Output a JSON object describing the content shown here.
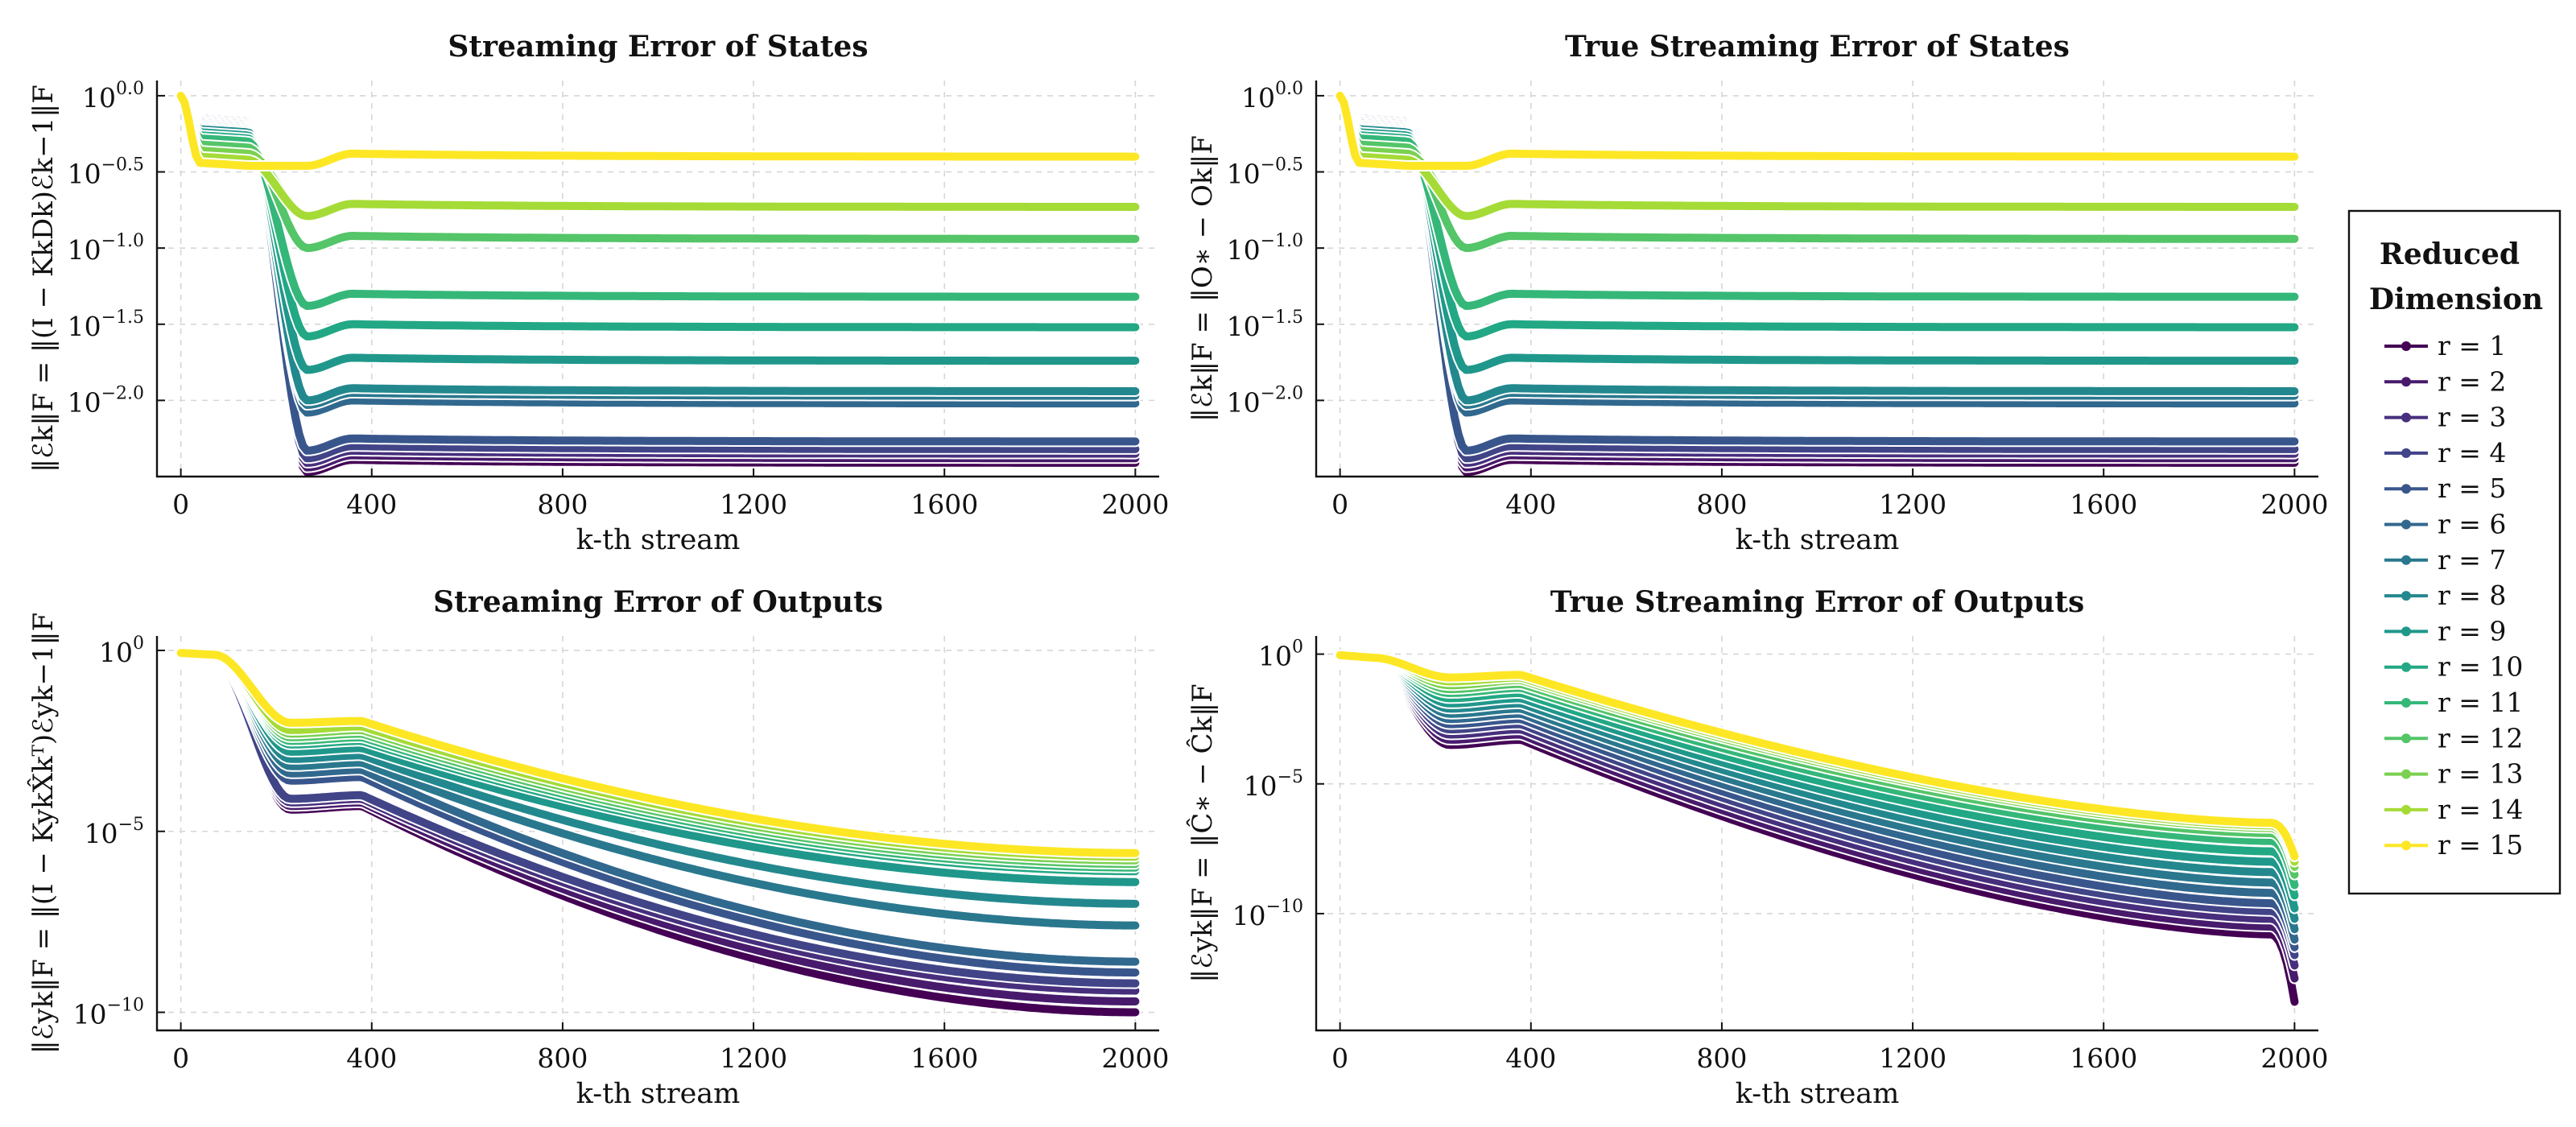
{
  "legend": {
    "title_line1": "Reduced",
    "title_line2": "Dimension",
    "placement": "right"
  },
  "chart_data": [
    {
      "type": "line",
      "title": "Streaming Error of States",
      "xlabel": "k-th stream",
      "ylabel": "‖ℰk‖F = ‖(I − KkDk)ℰk−1‖F",
      "yscale": "log",
      "xlim": [
        -50,
        2050
      ],
      "ylim": [
        -2.5,
        0.1
      ],
      "xticks": [
        "0",
        "400",
        "800",
        "1200",
        "1600",
        "2000"
      ],
      "xtick_values": [
        0,
        400,
        800,
        1200,
        1600,
        2000
      ],
      "yticks": [
        {
          "base": "10",
          "exp": "0.0"
        },
        {
          "base": "10",
          "exp": "−0.5"
        },
        {
          "base": "10",
          "exp": "−1.0"
        },
        {
          "base": "10",
          "exp": "−1.5"
        },
        {
          "base": "10",
          "exp": "−2.0"
        }
      ],
      "ytick_values": [
        0.0,
        -0.5,
        -1.0,
        -1.5,
        -2.0
      ],
      "grid": true,
      "series": [
        {
          "name": "r = 1",
          "start": 0.0,
          "plateau": -0.15,
          "final": -2.39
        },
        {
          "name": "r = 2",
          "start": 0.0,
          "plateau": -0.16,
          "final": -2.36
        },
        {
          "name": "r = 3",
          "start": 0.0,
          "plateau": -0.17,
          "final": -2.33
        },
        {
          "name": "r = 4",
          "start": 0.0,
          "plateau": -0.18,
          "final": -2.3
        },
        {
          "name": "r = 5",
          "start": 0.0,
          "plateau": -0.19,
          "final": -2.25
        },
        {
          "name": "r = 6",
          "start": 0.0,
          "plateau": -0.2,
          "final": -2.0
        },
        {
          "name": "r = 7",
          "start": 0.0,
          "plateau": -0.21,
          "final": -1.95
        },
        {
          "name": "r = 8",
          "start": 0.0,
          "plateau": -0.22,
          "final": -1.92
        },
        {
          "name": "r = 9",
          "start": 0.0,
          "plateau": -0.24,
          "final": -1.72
        },
        {
          "name": "r = 10",
          "start": 0.0,
          "plateau": -0.26,
          "final": -1.5
        },
        {
          "name": "r = 11",
          "start": 0.0,
          "plateau": -0.28,
          "final": -1.3
        },
        {
          "name": "r = 12",
          "start": 0.0,
          "plateau": -0.32,
          "final": -0.92
        },
        {
          "name": "r = 13",
          "start": 0.0,
          "plateau": -0.36,
          "final": -0.71
        },
        {
          "name": "r = 14",
          "start": 0.0,
          "plateau": -0.4,
          "final": -0.71
        },
        {
          "name": "r = 15",
          "start": 0.0,
          "plateau": -0.44,
          "final": -0.38
        }
      ]
    },
    {
      "type": "line",
      "title": "True Streaming Error of States",
      "xlabel": "k-th stream",
      "ylabel": "‖ℰk‖F = ‖O∗ − Ok‖F",
      "yscale": "log",
      "xlim": [
        -50,
        2050
      ],
      "ylim": [
        -2.5,
        0.1
      ],
      "xticks": [
        "0",
        "400",
        "800",
        "1200",
        "1600",
        "2000"
      ],
      "xtick_values": [
        0,
        400,
        800,
        1200,
        1600,
        2000
      ],
      "yticks": [
        {
          "base": "10",
          "exp": "0.0"
        },
        {
          "base": "10",
          "exp": "−0.5"
        },
        {
          "base": "10",
          "exp": "−1.0"
        },
        {
          "base": "10",
          "exp": "−1.5"
        },
        {
          "base": "10",
          "exp": "−2.0"
        }
      ],
      "ytick_values": [
        0.0,
        -0.5,
        -1.0,
        -1.5,
        -2.0
      ],
      "grid": true,
      "series": [
        {
          "name": "r = 1",
          "start": 0.0,
          "plateau": -0.15,
          "final": -2.39
        },
        {
          "name": "r = 2",
          "start": 0.0,
          "plateau": -0.16,
          "final": -2.36
        },
        {
          "name": "r = 3",
          "start": 0.0,
          "plateau": -0.17,
          "final": -2.33
        },
        {
          "name": "r = 4",
          "start": 0.0,
          "plateau": -0.18,
          "final": -2.3
        },
        {
          "name": "r = 5",
          "start": 0.0,
          "plateau": -0.19,
          "final": -2.25
        },
        {
          "name": "r = 6",
          "start": 0.0,
          "plateau": -0.2,
          "final": -2.0
        },
        {
          "name": "r = 7",
          "start": 0.0,
          "plateau": -0.21,
          "final": -1.95
        },
        {
          "name": "r = 8",
          "start": 0.0,
          "plateau": -0.22,
          "final": -1.92
        },
        {
          "name": "r = 9",
          "start": 0.0,
          "plateau": -0.24,
          "final": -1.72
        },
        {
          "name": "r = 10",
          "start": 0.0,
          "plateau": -0.26,
          "final": -1.5
        },
        {
          "name": "r = 11",
          "start": 0.0,
          "plateau": -0.28,
          "final": -1.3
        },
        {
          "name": "r = 12",
          "start": 0.0,
          "plateau": -0.32,
          "final": -0.92
        },
        {
          "name": "r = 13",
          "start": 0.0,
          "plateau": -0.36,
          "final": -0.71
        },
        {
          "name": "r = 14",
          "start": 0.0,
          "plateau": -0.4,
          "final": -0.71
        },
        {
          "name": "r = 15",
          "start": 0.0,
          "plateau": -0.44,
          "final": -0.38
        }
      ]
    },
    {
      "type": "line",
      "title": "Streaming Error of Outputs",
      "xlabel": "k-th stream",
      "ylabel": "‖ℰyk‖F = ‖(I − KykX̂kᵀ)ℰyk−1‖F",
      "yscale": "log",
      "xlim": [
        -50,
        2050
      ],
      "ylim": [
        -10.5,
        0.4
      ],
      "xticks": [
        "0",
        "400",
        "800",
        "1200",
        "1600",
        "2000"
      ],
      "xtick_values": [
        0,
        400,
        800,
        1200,
        1600,
        2000
      ],
      "yticks": [
        {
          "base": "10",
          "exp": "0"
        },
        {
          "base": "10",
          "exp": "−5"
        },
        {
          "base": "10",
          "exp": "−10"
        }
      ],
      "ytick_values": [
        0,
        -5,
        -10
      ],
      "grid": true,
      "series": [
        {
          "name": "r = 1",
          "start": -0.25,
          "dip": -4.4,
          "hump": -4.3,
          "final": -10.0
        },
        {
          "name": "r = 2",
          "start": -0.23,
          "dip": -4.3,
          "hump": -4.2,
          "final": -9.7
        },
        {
          "name": "r = 3",
          "start": -0.22,
          "dip": -4.2,
          "hump": -4.1,
          "final": -9.4
        },
        {
          "name": "r = 4",
          "start": -0.2,
          "dip": -4.1,
          "hump": -4.0,
          "final": -9.2
        },
        {
          "name": "r = 5",
          "start": -0.18,
          "dip": -3.6,
          "hump": -3.5,
          "final": -8.9
        },
        {
          "name": "r = 6",
          "start": -0.16,
          "dip": -3.4,
          "hump": -3.3,
          "final": -8.6
        },
        {
          "name": "r = 7",
          "start": -0.15,
          "dip": -3.2,
          "hump": -3.1,
          "final": -7.6
        },
        {
          "name": "r = 8",
          "start": -0.14,
          "dip": -3.0,
          "hump": -2.9,
          "final": -7.0
        },
        {
          "name": "r = 9",
          "start": -0.13,
          "dip": -2.8,
          "hump": -2.7,
          "final": -6.4
        },
        {
          "name": "r = 10",
          "start": -0.12,
          "dip": -2.6,
          "hump": -2.5,
          "final": -6.1
        },
        {
          "name": "r = 11",
          "start": -0.11,
          "dip": -2.5,
          "hump": -2.4,
          "final": -6.0
        },
        {
          "name": "r = 12",
          "start": -0.1,
          "dip": -2.4,
          "hump": -2.3,
          "final": -5.9
        },
        {
          "name": "r = 13",
          "start": -0.09,
          "dip": -2.3,
          "hump": -2.2,
          "final": -5.8
        },
        {
          "name": "r = 14",
          "start": -0.08,
          "dip": -2.2,
          "hump": -2.1,
          "final": -5.7
        },
        {
          "name": "r = 15",
          "start": -0.07,
          "dip": -2.0,
          "hump": -1.95,
          "final": -5.6
        }
      ]
    },
    {
      "type": "line",
      "title": "True Streaming Error of Outputs",
      "xlabel": "k-th stream",
      "ylabel": "‖ℰyk‖F = ‖Ĉ∗ − Ĉk‖F",
      "yscale": "log",
      "xlim": [
        -50,
        2050
      ],
      "ylim": [
        -14.5,
        0.7
      ],
      "xticks": [
        "0",
        "400",
        "800",
        "1200",
        "1600",
        "2000"
      ],
      "xtick_values": [
        0,
        400,
        800,
        1200,
        1600,
        2000
      ],
      "yticks": [
        {
          "base": "10",
          "exp": "0"
        },
        {
          "base": "10",
          "exp": "−5"
        },
        {
          "base": "10",
          "exp": "−10"
        }
      ],
      "ytick_values": [
        0,
        -5,
        -10
      ],
      "grid": true,
      "series": [
        {
          "name": "r = 1",
          "start": -0.3,
          "dip": -3.5,
          "hump": -3.3,
          "pre": -10.8,
          "end": -13.4
        },
        {
          "name": "r = 2",
          "start": -0.28,
          "dip": -3.3,
          "hump": -3.1,
          "pre": -10.5,
          "end": -12.5
        },
        {
          "name": "r = 3",
          "start": -0.26,
          "dip": -3.1,
          "hump": -2.9,
          "pre": -10.2,
          "end": -12.0
        },
        {
          "name": "r = 4",
          "start": -0.24,
          "dip": -2.9,
          "hump": -2.7,
          "pre": -9.9,
          "end": -11.6
        },
        {
          "name": "r = 5",
          "start": -0.22,
          "dip": -2.7,
          "hump": -2.5,
          "pre": -9.6,
          "end": -11.3
        },
        {
          "name": "r = 6",
          "start": -0.2,
          "dip": -2.5,
          "hump": -2.3,
          "pre": -9.2,
          "end": -11.0
        },
        {
          "name": "r = 7",
          "start": -0.18,
          "dip": -2.3,
          "hump": -2.1,
          "pre": -8.8,
          "end": -10.6
        },
        {
          "name": "r = 8",
          "start": -0.16,
          "dip": -2.1,
          "hump": -1.9,
          "pre": -8.4,
          "end": -10.2
        },
        {
          "name": "r = 9",
          "start": -0.14,
          "dip": -1.9,
          "hump": -1.7,
          "pre": -8.0,
          "end": -9.8
        },
        {
          "name": "r = 10",
          "start": -0.12,
          "dip": -1.7,
          "hump": -1.5,
          "pre": -7.6,
          "end": -9.3
        },
        {
          "name": "r = 11",
          "start": -0.1,
          "dip": -1.5,
          "hump": -1.3,
          "pre": -7.2,
          "end": -8.9
        },
        {
          "name": "r = 12",
          "start": -0.08,
          "dip": -1.35,
          "hump": -1.15,
          "pre": -6.9,
          "end": -8.5
        },
        {
          "name": "r = 13",
          "start": -0.06,
          "dip": -1.2,
          "hump": -1.0,
          "pre": -6.7,
          "end": -8.2
        },
        {
          "name": "r = 14",
          "start": -0.05,
          "dip": -1.05,
          "hump": -0.9,
          "pre": -6.6,
          "end": -8.0
        },
        {
          "name": "r = 15",
          "start": -0.04,
          "dip": -0.9,
          "hump": -0.8,
          "pre": -6.5,
          "end": -7.8
        }
      ]
    }
  ],
  "colors": [
    "#440154",
    "#481a6c",
    "#472f7d",
    "#414487",
    "#39568c",
    "#31688e",
    "#2a788e",
    "#23888e",
    "#1f988b",
    "#22a884",
    "#35b779",
    "#54c568",
    "#7ad151",
    "#a5db36",
    "#fde725"
  ]
}
